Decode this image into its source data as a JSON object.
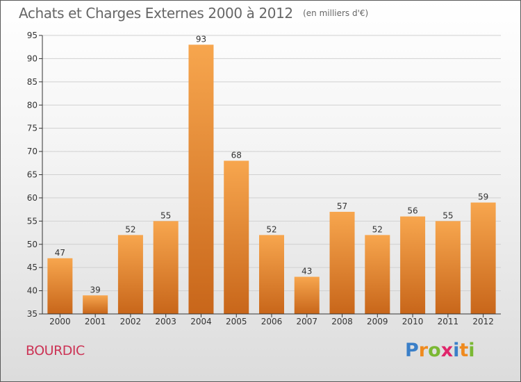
{
  "title": "Achats et Charges Externes 2000 à 2012",
  "unit": "(en milliers d'€)",
  "commune": "BOURDIC",
  "logo": {
    "text": "Proxiti",
    "letters": [
      {
        "ch": "P",
        "color": "#3a7fc8"
      },
      {
        "ch": "r",
        "color": "#ef8a1e"
      },
      {
        "ch": "o",
        "color": "#7ab833"
      },
      {
        "ch": "x",
        "color": "#e0266b"
      },
      {
        "ch": "i",
        "color": "#3a7fc8"
      },
      {
        "ch": "t",
        "color": "#ef8a1e"
      },
      {
        "ch": "i",
        "color": "#7ab833"
      }
    ]
  },
  "colors": {
    "bar_light": "#f7a64e",
    "bar_dark": "#c8661a",
    "title": "#666666",
    "commune": "#cc3355",
    "axis": "#333333",
    "grid": "#d0d0d0"
  },
  "chart_data": {
    "type": "bar",
    "title": "Achats et Charges Externes 2000 à 2012",
    "xlabel": "",
    "ylabel": "",
    "categories": [
      "2000",
      "2001",
      "2002",
      "2003",
      "2004",
      "2005",
      "2006",
      "2007",
      "2008",
      "2009",
      "2010",
      "2011",
      "2012"
    ],
    "values": [
      47,
      39,
      52,
      55,
      93,
      68,
      52,
      43,
      57,
      52,
      56,
      55,
      59
    ],
    "ylim": [
      35,
      95
    ],
    "yticks": [
      35,
      40,
      45,
      50,
      55,
      60,
      65,
      70,
      75,
      80,
      85,
      90,
      95
    ],
    "data_labels": true,
    "grid": true
  }
}
